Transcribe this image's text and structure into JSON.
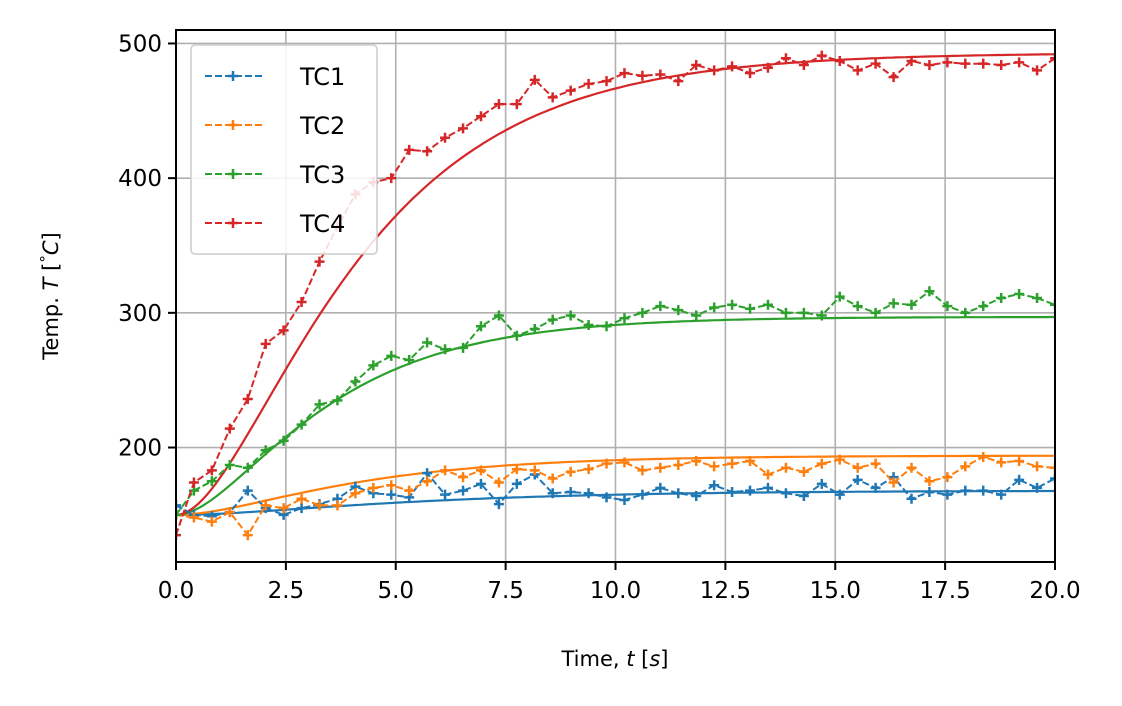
{
  "chart_data": {
    "type": "line",
    "xlabel": "Time, t [s]",
    "ylabel": "Temp. T  [°C]",
    "xlabel_parts": [
      "Time, ",
      "t",
      " [",
      "s",
      "]"
    ],
    "ylabel_parts": [
      "Temp. ",
      "T",
      "  [",
      "°",
      "C",
      "]"
    ],
    "xlim": [
      0,
      20
    ],
    "ylim": [
      115,
      510
    ],
    "xticks": [
      0,
      2.5,
      5,
      7.5,
      10,
      12.5,
      15,
      17.5,
      20
    ],
    "xtick_labels": [
      "0.0",
      "2.5",
      "5.0",
      "7.5",
      "10.0",
      "12.5",
      "15.0",
      "17.5",
      "20.0"
    ],
    "yticks": [
      200,
      300,
      400,
      500
    ],
    "ytick_labels": [
      "200",
      "300",
      "400",
      "500"
    ],
    "grid": true,
    "legend_position": "top-left",
    "x": [
      0,
      0.408,
      0.816,
      1.224,
      1.633,
      2.041,
      2.449,
      2.857,
      3.265,
      3.673,
      4.082,
      4.49,
      4.898,
      5.306,
      5.714,
      6.122,
      6.531,
      6.939,
      7.347,
      7.755,
      8.163,
      8.571,
      8.98,
      9.388,
      9.796,
      10.204,
      10.612,
      11.02,
      11.429,
      11.837,
      12.245,
      12.653,
      13.061,
      13.469,
      13.878,
      14.286,
      14.694,
      15.102,
      15.51,
      15.918,
      16.327,
      16.735,
      17.143,
      17.551,
      17.959,
      18.367,
      18.776,
      19.184,
      19.592,
      20.0
    ],
    "series": [
      {
        "name": "TC1",
        "color": "#1f77b4",
        "fit_tau": 4.0,
        "fit_start": 150,
        "values": [
          157,
          150,
          149,
          152,
          168,
          155,
          150,
          155,
          158,
          162,
          171,
          166,
          165,
          163,
          181,
          165,
          168,
          173,
          158,
          173,
          180,
          166,
          167,
          166,
          163,
          161,
          165,
          170,
          166,
          164,
          172,
          167,
          168,
          170,
          166,
          164,
          173,
          165,
          176,
          170,
          178,
          162,
          167,
          165,
          168,
          168,
          165,
          176,
          170,
          177
        ]
      },
      {
        "name": "TC2",
        "color": "#ff7f0e",
        "fit_tau": 3.0,
        "fit_start": 150,
        "values": [
          150,
          148,
          145,
          152,
          135,
          157,
          155,
          162,
          157,
          157,
          166,
          170,
          172,
          168,
          175,
          183,
          178,
          183,
          174,
          184,
          183,
          177,
          182,
          184,
          188,
          189,
          183,
          185,
          187,
          190,
          186,
          188,
          190,
          180,
          185,
          182,
          188,
          191,
          185,
          188,
          174,
          185,
          175,
          178,
          186,
          193,
          189,
          190,
          186,
          185
        ]
      },
      {
        "name": "TC3",
        "color": "#2ca02c",
        "fit_tau": 2.5,
        "fit_start": 150,
        "values": [
          150,
          168,
          175,
          187,
          185,
          198,
          205,
          217,
          232,
          235,
          249,
          261,
          268,
          265,
          278,
          273,
          274,
          290,
          298,
          283,
          288,
          295,
          298,
          291,
          290,
          296,
          300,
          305,
          302,
          298,
          304,
          306,
          303,
          306,
          300,
          300,
          298,
          312,
          305,
          300,
          307,
          306,
          316,
          305,
          300,
          305,
          311,
          314,
          311,
          306
        ]
      },
      {
        "name": "TC4",
        "color": "#d62728",
        "fit_tau": 3.0,
        "fit_start": 150,
        "values": [
          135,
          174,
          183,
          214,
          236,
          277,
          287,
          308,
          338,
          364,
          388,
          397,
          400,
          421,
          420,
          430,
          437,
          446,
          455,
          455,
          473,
          460,
          465,
          470,
          472,
          478,
          476,
          477,
          472,
          484,
          480,
          483,
          478,
          482,
          489,
          484,
          491,
          487,
          480,
          485,
          475,
          487,
          484,
          486,
          485,
          485,
          484,
          486,
          480,
          489
        ]
      }
    ],
    "fit_params": [
      {
        "name": "TC1",
        "final": 168,
        "delay": 1.5
      },
      {
        "name": "TC2",
        "final": 194,
        "delay": 1.5
      },
      {
        "name": "TC3",
        "final": 297,
        "delay": 1.5
      },
      {
        "name": "TC4",
        "final": 493,
        "delay": 1.8
      }
    ]
  }
}
